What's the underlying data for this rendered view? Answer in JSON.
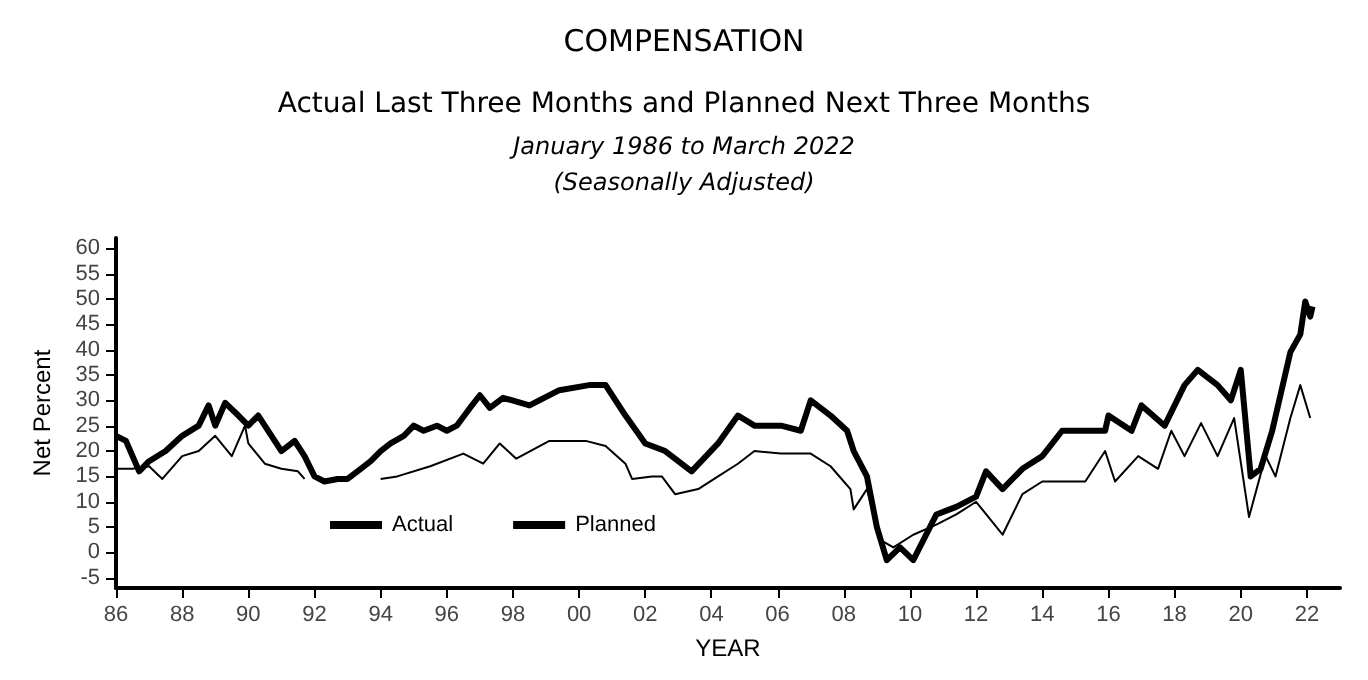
{
  "chart_data": {
    "type": "line",
    "title": "COMPENSATION",
    "subtitle": "Actual Last Three Months and Planned Next Three Months",
    "annotations": [
      "January 1986 to March 2022",
      "(Seasonally Adjusted)"
    ],
    "xlabel": "YEAR",
    "ylabel": "Net Percent",
    "xlim": [
      1986,
      2023
    ],
    "xticks": [
      {
        "value": 1986,
        "label": "86"
      },
      {
        "value": 1988,
        "label": "88"
      },
      {
        "value": 1990,
        "label": "90"
      },
      {
        "value": 1992,
        "label": "92"
      },
      {
        "value": 1994,
        "label": "94"
      },
      {
        "value": 1996,
        "label": "96"
      },
      {
        "value": 1998,
        "label": "98"
      },
      {
        "value": 2000,
        "label": "00"
      },
      {
        "value": 2002,
        "label": "02"
      },
      {
        "value": 2004,
        "label": "04"
      },
      {
        "value": 2006,
        "label": "06"
      },
      {
        "value": 2008,
        "label": "08"
      },
      {
        "value": 2010,
        "label": "10"
      },
      {
        "value": 2012,
        "label": "12"
      },
      {
        "value": 2014,
        "label": "14"
      },
      {
        "value": 2016,
        "label": "16"
      },
      {
        "value": 2018,
        "label": "18"
      },
      {
        "value": 2020,
        "label": "20"
      },
      {
        "value": 2022,
        "label": "22"
      }
    ],
    "ylim": [
      -7,
      62
    ],
    "yticks": [
      -5,
      0,
      5,
      10,
      15,
      20,
      25,
      30,
      35,
      40,
      45,
      50,
      55,
      60
    ],
    "grid": false,
    "legend": "bottom left",
    "marker": "none",
    "line_style": "solid",
    "series": [
      {
        "name": "Actual",
        "color": "#000000",
        "x": [
          1986.0,
          1986.3,
          1986.7,
          1987.0,
          1987.5,
          1988.0,
          1988.5,
          1988.8,
          1989.0,
          1989.3,
          1989.7,
          1990.0,
          1990.3,
          1990.7,
          1991.0,
          1991.4,
          1991.7,
          1992.0,
          1992.3,
          1992.7,
          1993.0,
          1993.3,
          1993.7,
          1994.0,
          1994.3,
          1994.7,
          1995.0,
          1995.3,
          1995.7,
          1996.0,
          1996.3,
          1996.7,
          1997.0,
          1997.3,
          1997.7,
          1998.5,
          1999.4,
          2000.3,
          2000.8,
          2001.4,
          2002.0,
          2002.6,
          2003.4,
          2004.2,
          2004.8,
          2005.3,
          2006.1,
          2006.7,
          2007.0,
          2007.6,
          2008.1,
          2008.3,
          2008.7,
          2009.0,
          2009.3,
          2009.7,
          2010.1,
          2010.8,
          2011.4,
          2012.0,
          2012.3,
          2012.8,
          2013.4,
          2014.0,
          2014.6,
          2015.3,
          2015.9,
          2016.0,
          2016.7,
          2017.0,
          2017.7,
          2018.3,
          2018.7,
          2019.3,
          2019.7,
          2020.0,
          2020.3,
          2020.6,
          2020.95,
          2021.5,
          2021.8,
          2021.95,
          2022.1,
          2022.17
        ],
        "values": [
          23,
          22,
          16,
          18,
          20,
          23,
          25,
          29,
          25,
          29.5,
          27,
          25,
          27,
          23,
          20,
          22,
          19,
          15,
          14,
          14.5,
          14.5,
          16,
          18,
          20,
          21.5,
          23,
          25,
          24,
          25,
          24,
          25,
          28.5,
          31,
          28.5,
          30.5,
          29,
          32,
          33,
          33,
          27,
          21.5,
          20,
          16,
          21.5,
          27,
          25,
          25,
          24,
          30,
          27,
          24,
          20,
          15,
          5,
          -1.5,
          1,
          -1.5,
          7.5,
          9,
          11,
          16,
          12.5,
          16.5,
          19,
          24,
          24,
          24,
          27,
          24,
          29,
          25,
          33,
          36,
          33,
          30,
          36,
          15,
          16.5,
          24,
          39.5,
          43,
          49.5,
          46.5,
          48.5
        ]
      },
      {
        "name": "Planned",
        "color": "#000000",
        "x": [
          1986.0,
          1986.5,
          1987.0,
          1987.4,
          1988.0,
          1988.5,
          1989.0,
          1989.5,
          1989.9,
          1990.0,
          1990.5,
          1991.0,
          1991.5,
          1991.7,
          1992.8,
          1994.0,
          1994.5,
          1995.5,
          1996.5,
          1997.1,
          1997.6,
          1998.1,
          1999.1,
          2000.2,
          2000.8,
          2001.4,
          2001.6,
          2002.2,
          2002.5,
          2002.9,
          2003.6,
          2004.2,
          2004.8,
          2005.3,
          2006.1,
          2007.0,
          2007.6,
          2008.2,
          2008.3,
          2008.7,
          2009.1,
          2009.5,
          2010.1,
          2010.8,
          2011.4,
          2012.0,
          2012.8,
          2013.4,
          2014.0,
          2015.3,
          2015.9,
          2016.2,
          2016.9,
          2017.5,
          2017.9,
          2018.3,
          2018.8,
          2019.3,
          2019.8,
          2020.25,
          2020.75,
          2021.05,
          2021.5,
          2021.8,
          2022.1
        ],
        "values": [
          16.5,
          16.5,
          17,
          14.5,
          19,
          20,
          23,
          19,
          25,
          21.5,
          17.5,
          16.5,
          16,
          14.5,
          null,
          14.5,
          15,
          17,
          19.5,
          17.5,
          21.5,
          18.5,
          22,
          22,
          21,
          17.5,
          14.5,
          15,
          15,
          11.5,
          12.5,
          15,
          17.5,
          20,
          19.5,
          19.5,
          17,
          12.5,
          8.5,
          12.5,
          2.5,
          1,
          3.5,
          5.5,
          7.5,
          10,
          3.5,
          11.5,
          14,
          14,
          20,
          14,
          19,
          16.5,
          24,
          19,
          25.5,
          19,
          26.5,
          7,
          19,
          15,
          26.5,
          33,
          26.5
        ]
      }
    ]
  }
}
